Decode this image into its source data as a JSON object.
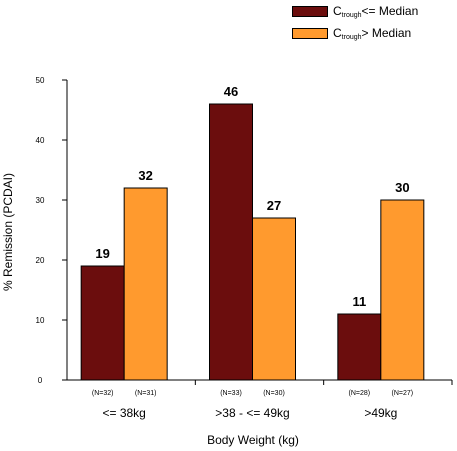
{
  "legend": [
    {
      "prefix": "C",
      "sub": "trough",
      "suffix": "<= Median",
      "color": "#6b0d0d"
    },
    {
      "prefix": "C",
      "sub": "trough",
      "suffix": "> Median",
      "color": "#ff9a2e"
    }
  ],
  "chart_data": {
    "type": "bar",
    "title": "",
    "xlabel": "Body Weight (kg)",
    "ylabel": "% Remission (PCDAI)",
    "ylim": [
      0,
      50
    ],
    "yticks": [
      0,
      10,
      20,
      30,
      40,
      50
    ],
    "categories": [
      "<= 38kg",
      ">38  - <= 49kg",
      ">49kg"
    ],
    "series": [
      {
        "values": [
          19,
          46,
          11
        ],
        "n_labels": [
          "(N=32)",
          "(N=33)",
          "(N=28)"
        ],
        "color": "#6b0d0d"
      },
      {
        "values": [
          32,
          27,
          30
        ],
        "n_labels": [
          "(N=31)",
          "(N=30)",
          "(N=27)"
        ],
        "color": "#ff9a2e"
      }
    ],
    "grid": false,
    "legend_position": "top-right"
  }
}
